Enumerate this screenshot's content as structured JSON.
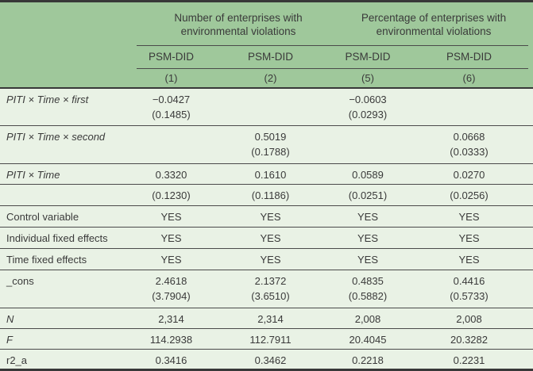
{
  "colors": {
    "header_bg": "#9fc89b",
    "body_bg": "#e9f2e5",
    "rule": "#4a4a4a",
    "frame": "#383838",
    "text": "#3a3a3a"
  },
  "table": {
    "group1_title": "Number of enterprises with environmental violations",
    "group2_title": "Percentage of enterprises with environmental violations",
    "methods": [
      "PSM-DID",
      "PSM-DID",
      "PSM-DID",
      "PSM-DID"
    ],
    "model_nums": [
      "(1)",
      "(2)",
      "(5)",
      "(6)"
    ],
    "rows": [
      {
        "label": "PITI × Time × first",
        "cells": [
          {
            "v": "−0.0427",
            "se": "(0.1485)"
          },
          {
            "v": "",
            "se": ""
          },
          {
            "v": "−0.0603",
            "se": "(0.0293)"
          },
          {
            "v": "",
            "se": ""
          }
        ]
      },
      {
        "label": "PITI × Time × second",
        "cells": [
          {
            "v": "",
            "se": ""
          },
          {
            "v": "0.5019",
            "se": "(0.1788)"
          },
          {
            "v": "",
            "se": ""
          },
          {
            "v": "0.0668",
            "se": "(0.0333)"
          }
        ]
      },
      {
        "label": "PITI × Time",
        "cells": [
          {
            "v": "0.3320",
            "se": ""
          },
          {
            "v": "0.1610",
            "se": ""
          },
          {
            "v": "0.0589",
            "se": ""
          },
          {
            "v": "0.0270",
            "se": ""
          }
        ]
      },
      {
        "label": "",
        "cells": [
          {
            "v": "(0.1230)",
            "se": ""
          },
          {
            "v": "(0.1186)",
            "se": ""
          },
          {
            "v": "(0.0251)",
            "se": ""
          },
          {
            "v": "(0.0256)",
            "se": ""
          }
        ]
      },
      {
        "label": "Control variable",
        "cells": [
          {
            "v": "YES",
            "se": ""
          },
          {
            "v": "YES",
            "se": ""
          },
          {
            "v": "YES",
            "se": ""
          },
          {
            "v": "YES",
            "se": ""
          }
        ]
      },
      {
        "label": "Individual fixed effects",
        "cells": [
          {
            "v": "YES",
            "se": ""
          },
          {
            "v": "YES",
            "se": ""
          },
          {
            "v": "YES",
            "se": ""
          },
          {
            "v": "YES",
            "se": ""
          }
        ]
      },
      {
        "label": "Time fixed effects",
        "cells": [
          {
            "v": "YES",
            "se": ""
          },
          {
            "v": "YES",
            "se": ""
          },
          {
            "v": "YES",
            "se": ""
          },
          {
            "v": "YES",
            "se": ""
          }
        ]
      },
      {
        "label": "_cons",
        "cells": [
          {
            "v": "2.4618",
            "se": "(3.7904)"
          },
          {
            "v": "2.1372",
            "se": "(3.6510)"
          },
          {
            "v": "0.4835",
            "se": "(0.5882)"
          },
          {
            "v": "0.4416",
            "se": "(0.5733)"
          }
        ]
      },
      {
        "label": "N",
        "cells": [
          {
            "v": "2,314",
            "se": ""
          },
          {
            "v": "2,314",
            "se": ""
          },
          {
            "v": "2,008",
            "se": ""
          },
          {
            "v": "2,008",
            "se": ""
          }
        ]
      },
      {
        "label": "F",
        "cells": [
          {
            "v": "114.2938",
            "se": ""
          },
          {
            "v": "112.7911",
            "se": ""
          },
          {
            "v": "20.4045",
            "se": ""
          },
          {
            "v": "20.3282",
            "se": ""
          }
        ]
      },
      {
        "label": "r2_a",
        "cells": [
          {
            "v": "0.3416",
            "se": ""
          },
          {
            "v": "0.3462",
            "se": ""
          },
          {
            "v": "0.2218",
            "se": ""
          },
          {
            "v": "0.2231",
            "se": ""
          }
        ]
      }
    ]
  }
}
